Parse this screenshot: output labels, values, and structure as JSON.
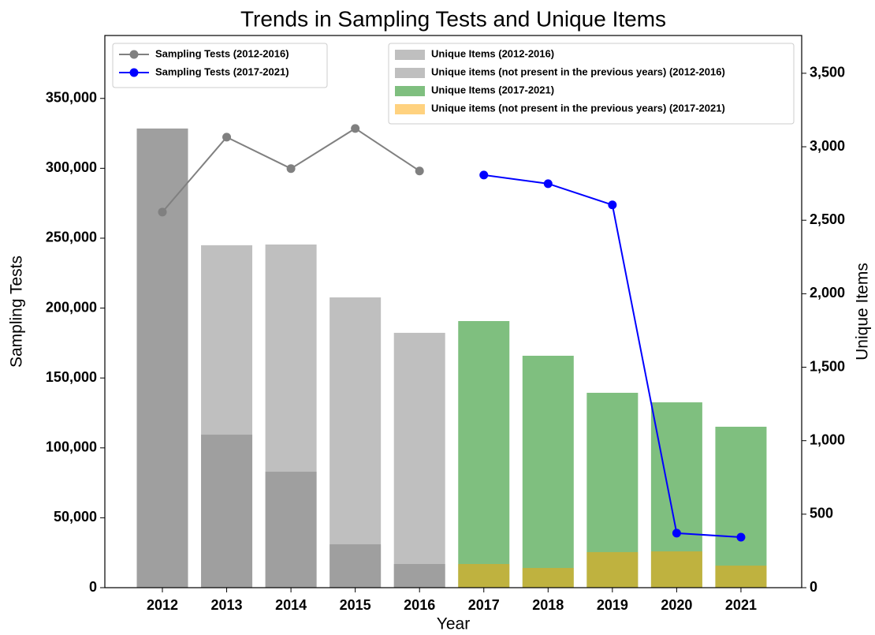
{
  "chart_data": {
    "type": "bar-line",
    "title": "Trends in Sampling Tests and Unique Items",
    "xlabel": "Year",
    "ylabel": "Sampling Tests",
    "y2label": "Unique Items",
    "categories": [
      "2012",
      "2013",
      "2014",
      "2015",
      "2016",
      "2017",
      "2018",
      "2019",
      "2020",
      "2021"
    ],
    "ylim": [
      0,
      395000
    ],
    "yticks": [
      0,
      {
        "value": 50000,
        "label": "50,000"
      },
      {
        "value": 100000,
        "label": "100,000"
      },
      {
        "value": 150000,
        "label": "150,000"
      },
      {
        "value": 200000,
        "label": "200,000"
      },
      {
        "value": 250000,
        "label": "250,000"
      },
      {
        "value": 300000,
        "label": "300,000"
      },
      {
        "value": 350000,
        "label": "350,000"
      }
    ],
    "y2lim": [
      0,
      3757
    ],
    "y2ticks": [
      0,
      500,
      {
        "value": 1000,
        "label": "1,000"
      },
      {
        "value": 1500,
        "label": "1,500"
      },
      {
        "value": 2000,
        "label": "2,000"
      },
      {
        "value": 2500,
        "label": "2,500"
      },
      {
        "value": 3000,
        "label": "3,000"
      },
      {
        "value": 3500,
        "label": "3,500"
      }
    ],
    "bar_alpha": 0.5,
    "series": [
      {
        "name": "Sampling Tests (2012-2016)",
        "type": "line",
        "color": "gray",
        "values": [
          268700,
          322300,
          299800,
          328500,
          298100,
          null,
          null,
          null,
          null,
          null
        ]
      },
      {
        "name": "Sampling Tests (2017-2021)",
        "type": "line",
        "color": "blue",
        "values": [
          null,
          null,
          null,
          null,
          null,
          295200,
          289000,
          273800,
          39000,
          36100
        ]
      },
      {
        "name": "Unique Items (2012-2016)",
        "type": "bar",
        "axis": "y2",
        "color": "gray",
        "values": [
          3124,
          2330,
          2335,
          1975,
          1734,
          null,
          null,
          null,
          null,
          null
        ]
      },
      {
        "name": "Unique items (not present in the previous years) (2012-2016)",
        "type": "bar",
        "axis": "y2",
        "color": "gray",
        "values": [
          3124,
          1041,
          789,
          295,
          161,
          null,
          null,
          null,
          null,
          null
        ]
      },
      {
        "name": "Unique Items (2017-2021)",
        "type": "bar",
        "axis": "y2",
        "color": "green",
        "values": [
          null,
          null,
          null,
          null,
          null,
          1814,
          1578,
          1326,
          1261,
          1095
        ]
      },
      {
        "name": "Unique items (not present in the previous years) (2017-2021)",
        "type": "bar",
        "axis": "y2",
        "color": "orange",
        "values": [
          null,
          null,
          null,
          null,
          null,
          161,
          134,
          242,
          247,
          150
        ]
      }
    ]
  }
}
